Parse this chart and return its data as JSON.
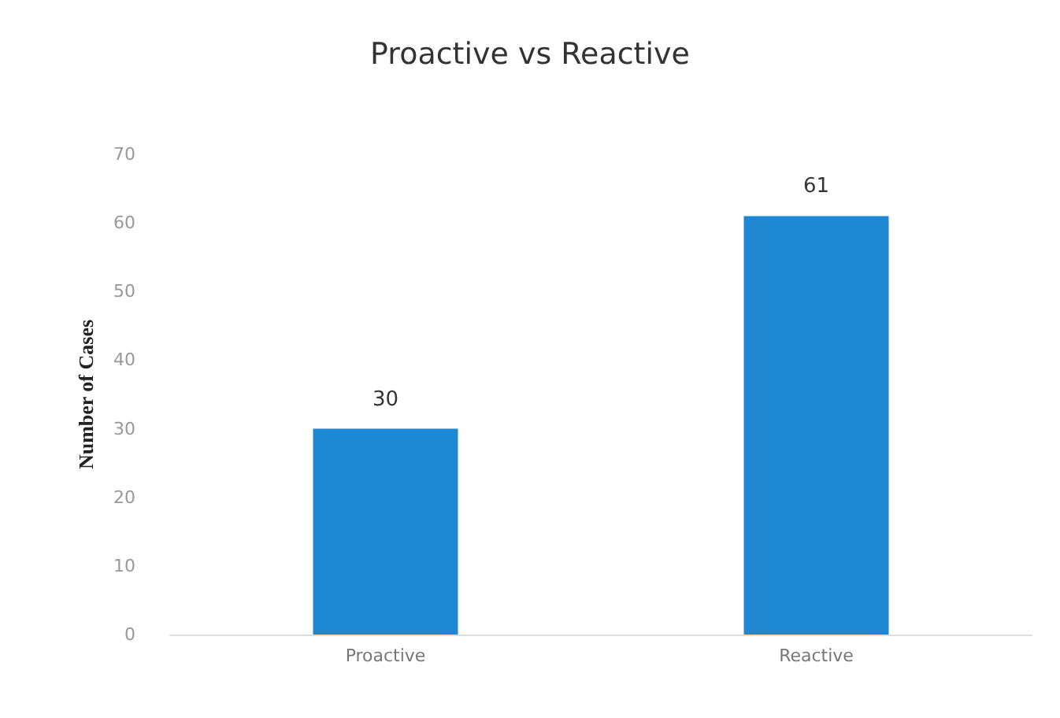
{
  "chart_data": {
    "type": "bar",
    "title": "Proactive vs Reactive",
    "ylabel": "Number of Cases",
    "categories": [
      "Proactive",
      "Reactive"
    ],
    "values": [
      30,
      61
    ],
    "color": "#1e88d2",
    "ylim": [
      0,
      70
    ],
    "yticks": [
      0,
      10,
      20,
      30,
      40,
      50,
      60,
      70
    ],
    "data_labels": true,
    "grid": false
  }
}
